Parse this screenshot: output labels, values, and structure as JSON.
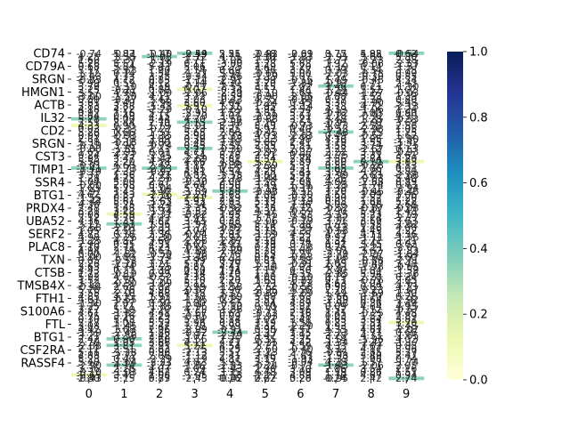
{
  "chart_data": {
    "type": "heatmap",
    "title": "",
    "xlabel": "",
    "ylabel": "",
    "x_categories": [
      "0",
      "1",
      "2",
      "3",
      "4",
      "5",
      "6",
      "7",
      "8",
      "9"
    ],
    "y_tick_labels": [
      "CD74",
      "CD79A",
      "SRGN",
      "HMGN1",
      "ACTB",
      "IL32",
      "CD2",
      "SRGN",
      "CST3",
      "TIMP1",
      "SSR4",
      "BTG1",
      "PRDX4",
      "UBA52",
      "SERF2",
      "PLAC8",
      "TXN",
      "CTSB",
      "TMSB4X",
      "FTH1",
      "S100A6",
      "FTL",
      "BTG1",
      "CSF2RA",
      "RASSF4"
    ],
    "colorbar": {
      "colormap": "YlGnBu",
      "range": [
        0.0,
        1.0
      ],
      "ticks": [
        "0.0",
        "0.2",
        "0.4",
        "0.6",
        "0.8",
        "1.0"
      ],
      "colors": [
        "#ffffd9",
        "#edf8b1",
        "#c7e9b4",
        "#7fcdbb",
        "#41b6c4",
        "#1d91c0",
        "#225ea8",
        "#253494",
        "#081d58"
      ]
    },
    "annotation_color": "#262626",
    "visible_annotations": [
      {
        "x": "1",
        "text": "-0.11"
      },
      {
        "x": "2",
        "text": "-0.40"
      },
      {
        "x": "3",
        "text": "-0.54"
      },
      {
        "x": "4",
        "text": "2.55"
      },
      {
        "x": "5",
        "text": "2.48"
      },
      {
        "x": "6",
        "text": "-0.01"
      },
      {
        "x": "7",
        "text": "3.77"
      },
      {
        "x": "8",
        "text": "4.92"
      },
      {
        "x": "9",
        "text": "-0.54"
      },
      {
        "x": "0",
        "text": "-0.43"
      },
      {
        "x": "2",
        "text": "0.75"
      },
      {
        "x": "4",
        "text": "0.16"
      },
      {
        "x": "5",
        "text": "2.22"
      },
      {
        "x": "6",
        "text": "0.20"
      },
      {
        "x": "7",
        "text": "0.24"
      }
    ],
    "grid": false,
    "legend": "none"
  }
}
